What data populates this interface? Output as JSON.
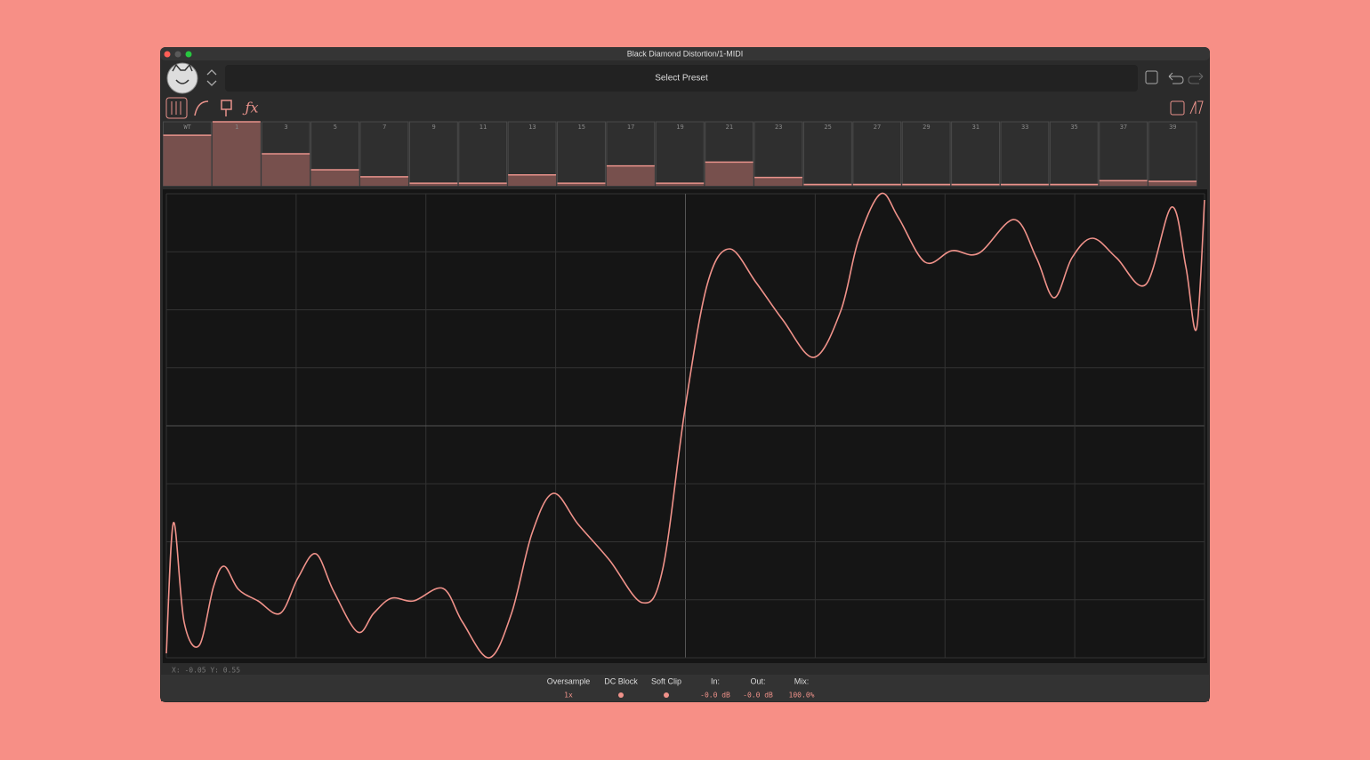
{
  "window": {
    "title": "Black Diamond Distortion/1-MIDI",
    "preset": "Select Preset"
  },
  "harmonics": {
    "labels": [
      "WT",
      "1",
      "3",
      "5",
      "7",
      "9",
      "11",
      "13",
      "15",
      "17",
      "19",
      "21",
      "23",
      "25",
      "27",
      "29",
      "31",
      "33",
      "35",
      "37",
      "39"
    ],
    "levels": [
      0.79,
      1.0,
      0.5,
      0.25,
      0.14,
      0.04,
      0.04,
      0.17,
      0.04,
      0.31,
      0.04,
      0.37,
      0.13,
      0.02,
      0.02,
      0.02,
      0.02,
      0.02,
      0.02,
      0.08,
      0.07
    ]
  },
  "cursor": "X: -0.05  Y: 0.55",
  "footer": {
    "oversample": {
      "label": "Oversample",
      "value": "1x"
    },
    "dc_block": {
      "label": "DC Block"
    },
    "soft_clip": {
      "label": "Soft Clip"
    },
    "in": {
      "label": "In:",
      "value": "-0.0 dB"
    },
    "out": {
      "label": "Out:",
      "value": "-0.0 dB"
    },
    "mix": {
      "label": "Mix:",
      "value": "100.0%"
    }
  }
}
